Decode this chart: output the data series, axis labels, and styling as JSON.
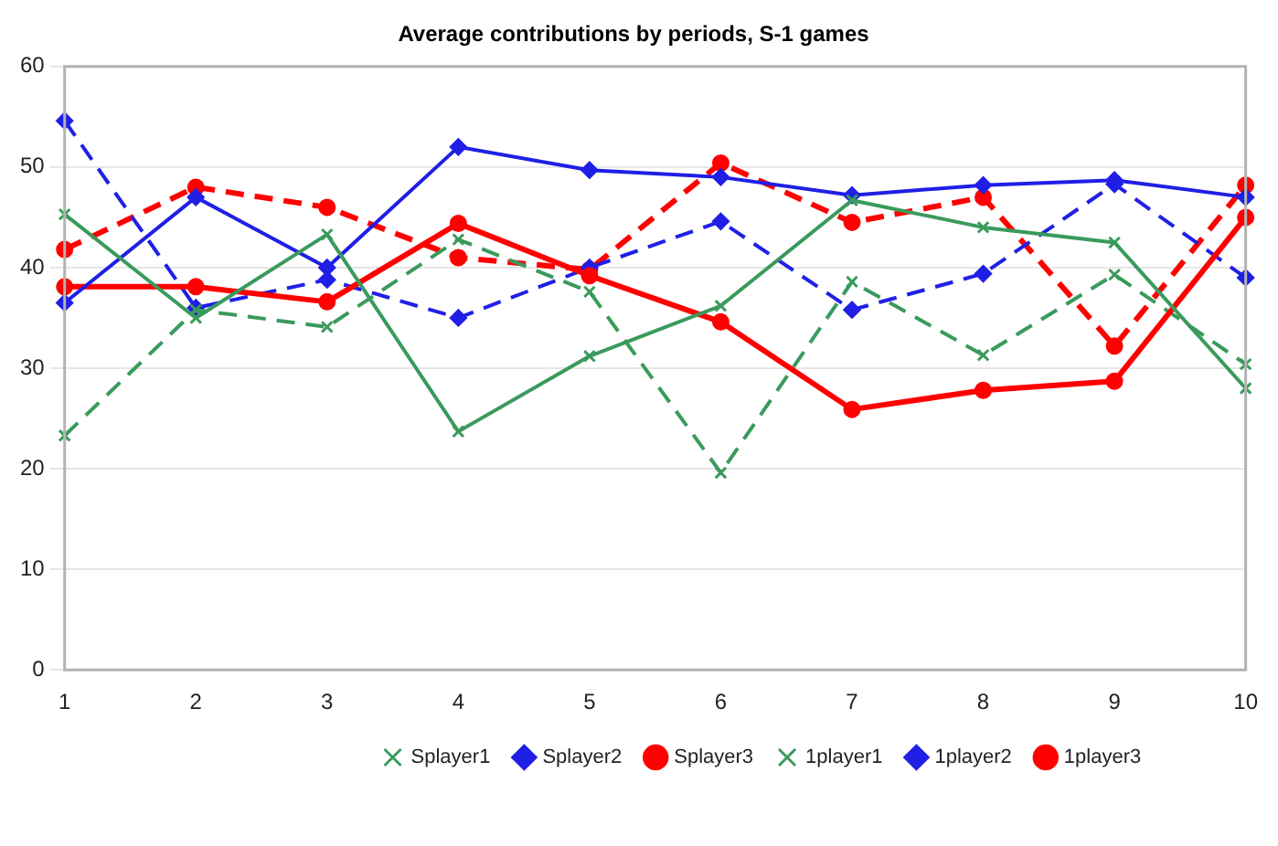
{
  "chart_data": {
    "type": "line",
    "title": "Average contributions by periods, S-1 games",
    "categories": [
      "1",
      "2",
      "3",
      "4",
      "5",
      "6",
      "7",
      "8",
      "9",
      "10"
    ],
    "ylim": [
      0,
      60
    ],
    "yticks": [
      0,
      10,
      20,
      30,
      40,
      50,
      60
    ],
    "grid": "y",
    "legend": "bottom",
    "series": [
      {
        "name": "Splayer1",
        "color": "#3a9a5c",
        "marker": "cross",
        "line_style": "solid",
        "values": [
          45.3,
          35,
          43.3,
          23.7,
          31.2,
          36.2,
          46.7,
          44,
          42.5,
          28
        ]
      },
      {
        "name": "Splayer2",
        "color": "#1f1fe6",
        "marker": "diamond",
        "line_style": "solid",
        "values": [
          36.5,
          47,
          40,
          52,
          49.7,
          49,
          47.2,
          48.2,
          48.7,
          47
        ]
      },
      {
        "name": "Splayer3",
        "color": "#ff0000",
        "marker": "circle",
        "line_style": "solid",
        "values": [
          38.1,
          38.1,
          36.6,
          44.4,
          39.2,
          34.6,
          25.9,
          27.8,
          28.7,
          45
        ]
      },
      {
        "name": "1player1",
        "color": "#3a9a5c",
        "marker": "cross",
        "line_style": "dashed",
        "values": [
          23.3,
          35.8,
          34.1,
          42.8,
          37.6,
          19.6,
          38.6,
          31.3,
          39.3,
          30.4
        ]
      },
      {
        "name": "1player2",
        "color": "#1f1fe6",
        "marker": "diamond",
        "line_style": "dashed",
        "values": [
          54.6,
          36,
          38.8,
          35,
          40,
          44.6,
          35.8,
          39.4,
          48.3,
          39
        ]
      },
      {
        "name": "1player3",
        "color": "#ff0000",
        "marker": "circle",
        "line_style": "dashed",
        "values": [
          41.8,
          48,
          46,
          41,
          39.8,
          50.4,
          44.5,
          47,
          32.2,
          48.2
        ]
      }
    ]
  }
}
